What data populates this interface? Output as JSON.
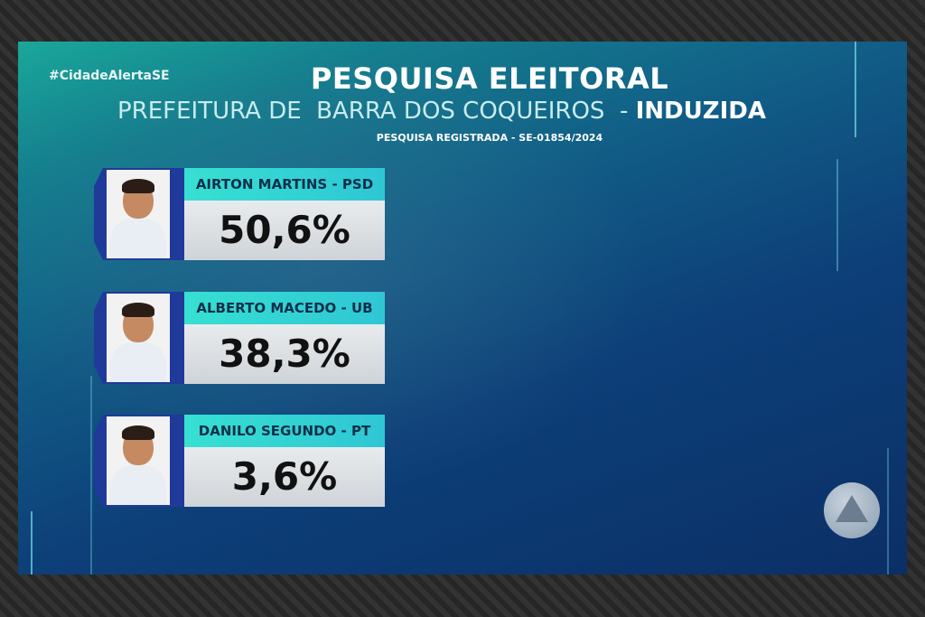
{
  "header": {
    "hashtag": "#CidadeAlertaSE",
    "title": "PESQUISA ELEITORAL",
    "subtitle_main": "PREFEITURA DE  BARRA DOS COQUEIROS",
    "subtitle_sep": "  - ",
    "subtitle_type": "INDUZIDA",
    "registration": "PESQUISA REGISTRADA - SE-01854/2024"
  },
  "candidates": [
    {
      "name": "AIRTON MARTINS - PSD",
      "percent": "50,6%",
      "value": 50.6
    },
    {
      "name": "ALBERTO MACEDO - UB",
      "percent": "38,3%",
      "value": 38.3
    },
    {
      "name": "DANILO SEGUNDO - PT",
      "percent": "3,6%",
      "value": 3.6
    }
  ],
  "colors": {
    "name_bar": "#36e0d2",
    "percent_box": "#e8ebee",
    "photo_frame": "#1f3a9a",
    "background_top": "#1aa79a",
    "background_bottom": "#0b2f66"
  },
  "icons": {
    "channel_logo": "triangle-logo-icon"
  }
}
